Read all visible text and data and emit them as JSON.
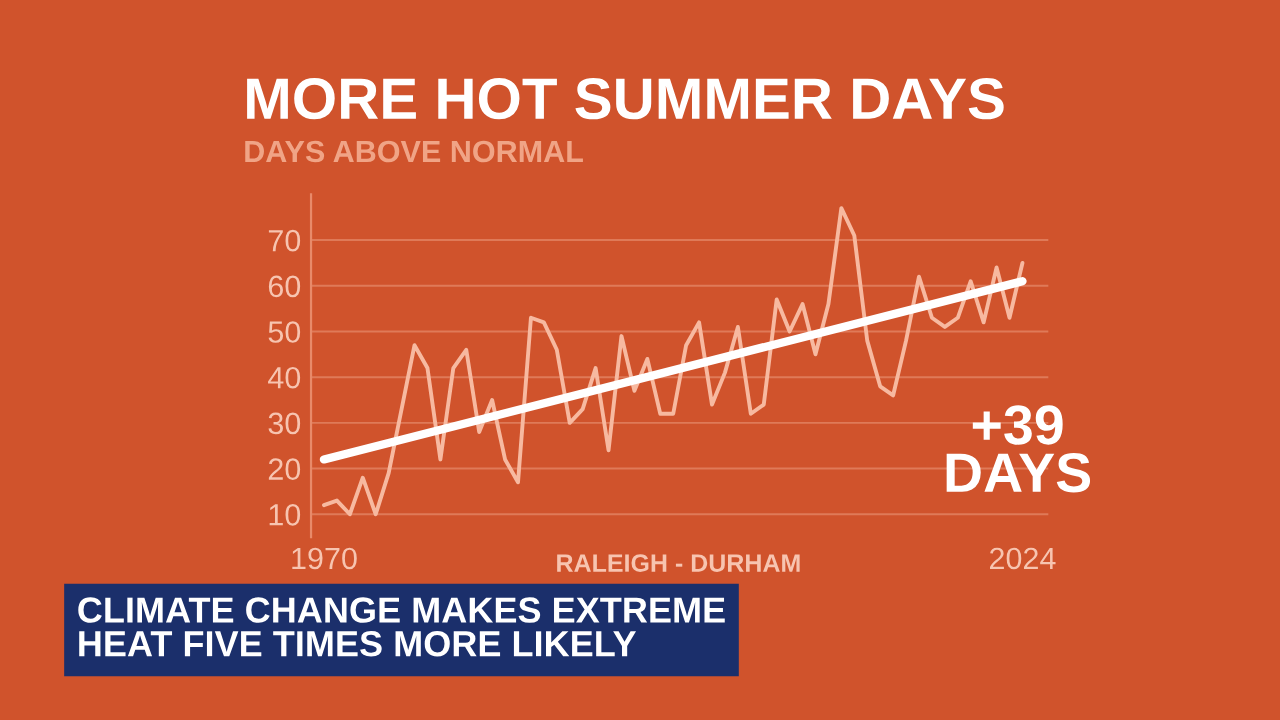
{
  "chart_data": {
    "type": "line",
    "title": "MORE HOT SUMMER DAYS",
    "subtitle": "DAYS ABOVE NORMAL",
    "xlim": [
      1969,
      2026
    ],
    "xticks": [
      1970,
      2024
    ],
    "ylim": [
      5,
      80
    ],
    "yticks": [
      10,
      20,
      30,
      40,
      50,
      60,
      70
    ],
    "grid": "y",
    "series": [
      {
        "color": "#f7b9a0",
        "x": [
          1970,
          1971,
          1972,
          1973,
          1974,
          1975,
          1976,
          1977,
          1978,
          1979,
          1980,
          1981,
          1982,
          1983,
          1984,
          1985,
          1986,
          1987,
          1988,
          1989,
          1990,
          1991,
          1992,
          1993,
          1994,
          1995,
          1996,
          1997,
          1998,
          1999,
          2000,
          2001,
          2002,
          2003,
          2004,
          2005,
          2006,
          2007,
          2008,
          2009,
          2010,
          2011,
          2012,
          2013,
          2014,
          2015,
          2016,
          2017,
          2018,
          2019,
          2020,
          2021,
          2022,
          2023,
          2024
        ],
        "values": [
          12,
          13,
          10,
          18,
          10,
          19,
          33,
          47,
          42,
          22,
          42,
          46,
          28,
          35,
          22,
          17,
          53,
          52,
          46,
          30,
          33,
          42,
          24,
          49,
          37,
          44,
          32,
          32,
          47,
          52,
          34,
          41,
          51,
          32,
          34,
          57,
          50,
          56,
          45,
          56,
          77,
          71,
          48,
          38,
          36,
          48,
          62,
          53,
          51,
          53,
          61,
          52,
          64,
          53,
          65
        ]
      },
      {
        "color": "#ffffff",
        "x": [
          1970,
          2024
        ],
        "values": [
          22,
          61
        ]
      }
    ],
    "annotations": [
      "+39\nDAYS",
      "RALEIGH - DURHAM",
      "CLIMATE CHANGE MAKES EXTREME\nHEAT FIVE TIMES MORE LIKELY"
    ]
  }
}
